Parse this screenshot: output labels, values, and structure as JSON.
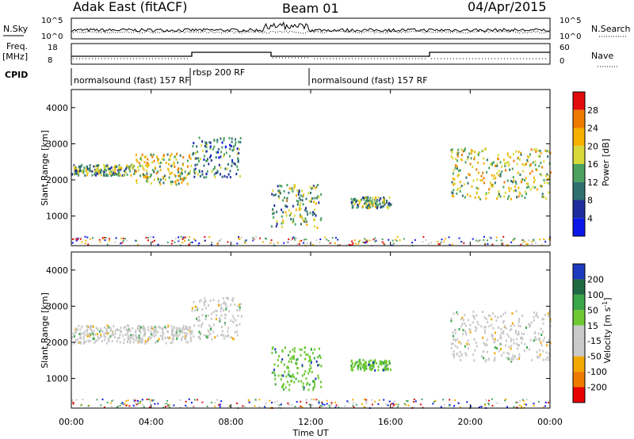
{
  "header": {
    "title": "Adak East (fitACF)",
    "beam": "Beam 01",
    "date": "04/Apr/2015"
  },
  "labels": {
    "nsky": "N.Sky",
    "freq": "Freq.",
    "freq_unit": "[MHz]",
    "cpid": "CPID",
    "nsearch": "N.Search",
    "nave": "Nave",
    "nsky_ticks": [
      "10^5",
      "10^0"
    ],
    "nsearch_ticks": [
      "10^5",
      "10^0"
    ],
    "freq_ticks": [
      "18",
      "8"
    ],
    "nave_ticks": [
      "60",
      "0"
    ]
  },
  "cpid_segments": [
    {
      "label": "normalsound (fast) 157 RF",
      "start_h": 0,
      "end_h": 6.0
    },
    {
      "label": "rbsp 200 RF",
      "start_h": 6.0,
      "end_h": 12.0
    },
    {
      "label": "normalsound (fast) 157 RF",
      "start_h": 12.0,
      "end_h": 24.0
    }
  ],
  "chart_data": [
    {
      "type": "heatmap",
      "panel": "power",
      "ylabel": "Slant Range [km]",
      "ylim": [
        180,
        4500
      ],
      "yticks": [
        1000,
        2000,
        3000,
        4000
      ],
      "colorbar": {
        "label": "Power [dB]",
        "ticks": [
          4,
          8,
          12,
          16,
          20,
          24,
          28
        ],
        "colors": [
          "#0b17e8",
          "#1f2d9c",
          "#2f6f70",
          "#4aa160",
          "#d8d83a",
          "#f6b000",
          "#f07a00",
          "#e20b0b"
        ]
      },
      "scatter_regions": [
        {
          "t_start_h": 0.0,
          "t_end_h": 3.2,
          "range_km": [
            2150,
            2450
          ],
          "power_db": 12
        },
        {
          "t_start_h": 3.2,
          "t_end_h": 6.0,
          "range_km": [
            1900,
            2750
          ],
          "power_db": 16
        },
        {
          "t_start_h": 6.0,
          "t_end_h": 8.5,
          "range_km": [
            2100,
            3200
          ],
          "power_db": 8
        },
        {
          "t_start_h": 10.0,
          "t_end_h": 12.5,
          "range_km": [
            700,
            1900
          ],
          "power_db": 12
        },
        {
          "t_start_h": 14.0,
          "t_end_h": 16.0,
          "range_km": [
            1250,
            1550
          ],
          "power_db": 12
        },
        {
          "t_start_h": 19.0,
          "t_end_h": 24.0,
          "range_km": [
            1500,
            2900
          ],
          "power_db": 16
        }
      ]
    },
    {
      "type": "heatmap",
      "panel": "velocity",
      "ylabel": "Slant Range [km]",
      "xlabel": "Time UT",
      "xticks": [
        "00:00",
        "04:00",
        "08:00",
        "12:00",
        "16:00",
        "20:00",
        "00:00"
      ],
      "ylim": [
        180,
        4500
      ],
      "yticks": [
        1000,
        2000,
        3000,
        4000
      ],
      "colorbar": {
        "label": "Velocity [m s^-1]",
        "ticks": [
          200,
          100,
          50,
          15,
          -15,
          -50,
          -100,
          -200
        ],
        "colors": [
          "#1d3bbf",
          "#1f6a42",
          "#3aa64a",
          "#6ec832",
          "#c9c9c9",
          "#c9c9c9",
          "#f2a800",
          "#ee7a00",
          "#e60000"
        ]
      },
      "scatter_regions": [
        {
          "t_start_h": 0.0,
          "t_end_h": 6.0,
          "range_km": [
            2000,
            2500
          ],
          "velocity_ms": -10
        },
        {
          "t_start_h": 6.0,
          "t_end_h": 8.5,
          "range_km": [
            2100,
            3300
          ],
          "velocity_ms": 0
        },
        {
          "t_start_h": 10.0,
          "t_end_h": 12.5,
          "range_km": [
            700,
            1900
          ],
          "velocity_ms": 60
        },
        {
          "t_start_h": 14.0,
          "t_end_h": 16.0,
          "range_km": [
            1250,
            1550
          ],
          "velocity_ms": 60
        },
        {
          "t_start_h": 19.0,
          "t_end_h": 24.0,
          "range_km": [
            1500,
            2900
          ],
          "velocity_ms": -10
        }
      ]
    }
  ]
}
